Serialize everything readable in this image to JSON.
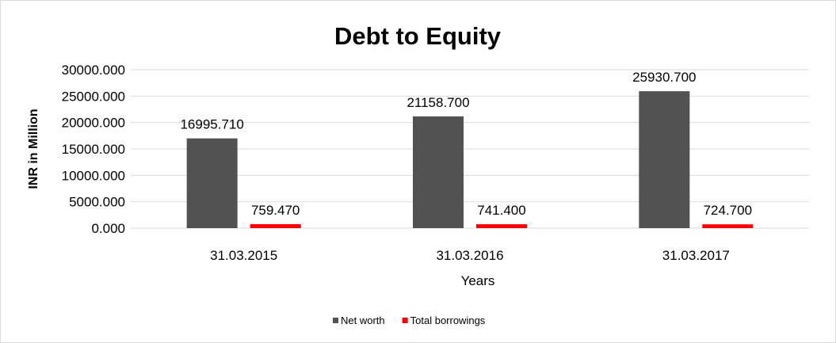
{
  "chart_data": {
    "type": "bar",
    "title": "Debt to Equity",
    "xlabel": "Years",
    "ylabel": "INR in Million",
    "categories": [
      "31.03.2015",
      "31.03.2016",
      "31.03.2017"
    ],
    "series": [
      {
        "name": "Net worth",
        "values": [
          16995.71,
          21158.7,
          25930.7
        ],
        "labels": [
          "16995.710",
          "21158.700",
          "25930.700"
        ],
        "color": "#525252"
      },
      {
        "name": "Total borrowings",
        "values": [
          759.47,
          741.4,
          724.7
        ],
        "labels": [
          "759.470",
          "741.400",
          "724.700"
        ],
        "color": "#ff0000"
      }
    ],
    "ylim": [
      0,
      30000
    ],
    "yticks": [
      0,
      5000,
      10000,
      15000,
      20000,
      25000,
      30000
    ],
    "ytick_labels": [
      "0.000",
      "5000.000",
      "10000.000",
      "15000.000",
      "20000.000",
      "25000.000",
      "30000.000"
    ],
    "grid": true,
    "legend_position": "bottom"
  }
}
